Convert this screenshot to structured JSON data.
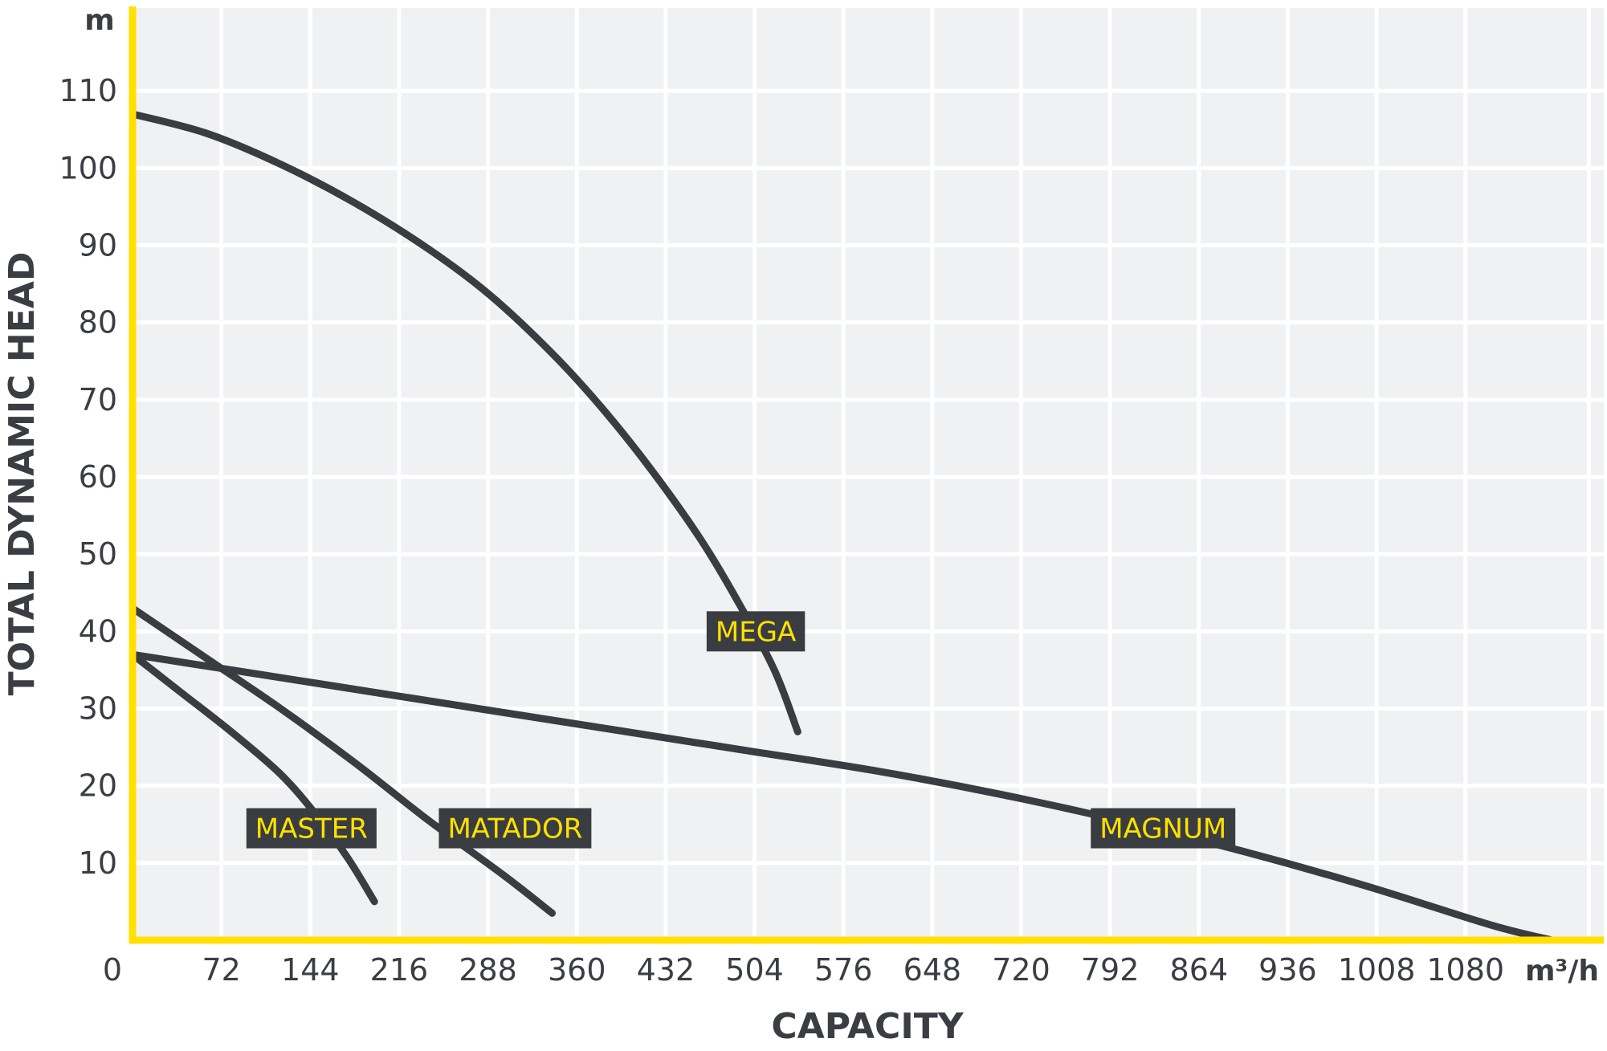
{
  "chart_data": {
    "type": "line",
    "xlabel": "CAPACITY",
    "ylabel": "TOTAL DYNAMIC HEAD",
    "x_unit": "m³/h",
    "y_unit": "m",
    "xlim": [
      0,
      1155
    ],
    "ylim": [
      0,
      120
    ],
    "x_ticks": [
      0,
      72,
      144,
      216,
      288,
      360,
      432,
      504,
      576,
      648,
      720,
      792,
      864,
      936,
      1008,
      1080
    ],
    "y_ticks": [
      10,
      20,
      30,
      40,
      50,
      60,
      70,
      80,
      90,
      100,
      110
    ],
    "grid": true,
    "series": [
      {
        "name": "MEGA",
        "x": [
          0,
          60,
          120,
          180,
          240,
          290,
          340,
          380,
          420,
          460,
          490,
          520,
          539
        ],
        "y": [
          107,
          104.5,
          100.5,
          95.5,
          89.5,
          83.5,
          76,
          69,
          61,
          52,
          44,
          35,
          27
        ],
        "label_at": [
          505,
          40
        ]
      },
      {
        "name": "MASTER",
        "x": [
          0,
          40,
          80,
          120,
          150,
          175,
          196
        ],
        "y": [
          37,
          32,
          27,
          21.5,
          16,
          10.5,
          5
        ],
        "label_at": [
          145,
          14.5
        ]
      },
      {
        "name": "MATADOR",
        "x": [
          0,
          60,
          120,
          180,
          240,
          300,
          340
        ],
        "y": [
          43,
          36.5,
          30,
          23,
          15.5,
          8.5,
          3.5
        ],
        "label_at": [
          310,
          14.5
        ]
      },
      {
        "name": "MAGNUM",
        "x": [
          0,
          100,
          200,
          300,
          400,
          500,
          600,
          700,
          800,
          900,
          1000,
          1100,
          1150
        ],
        "y": [
          37,
          34.5,
          32,
          29.5,
          27,
          24.5,
          22,
          19,
          15.5,
          11.5,
          7,
          2,
          0
        ],
        "label_at": [
          835,
          14.5
        ]
      }
    ],
    "colors": {
      "axis": "#ffe000",
      "grid": "#ffffff",
      "plot_bg": "#f0f1f3",
      "line": "#393d41",
      "label_bg": "#393d41",
      "label_text": "#ffe000",
      "text": "#3a3e42"
    }
  }
}
